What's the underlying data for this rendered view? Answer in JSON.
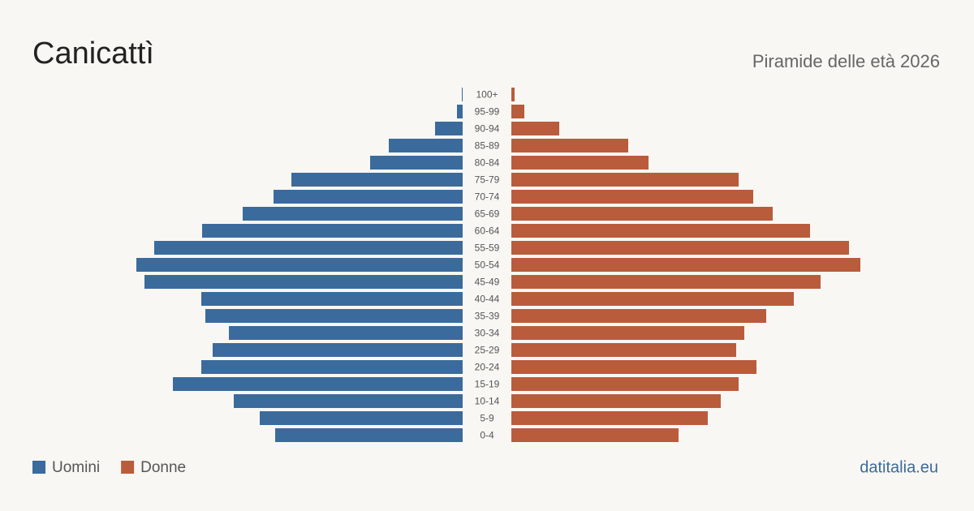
{
  "chart_data": {
    "type": "pyramid",
    "title": "Canicattì",
    "subtitle": "Piramide delle età 2026",
    "source": "datitalia.eu",
    "categories": [
      "100+",
      "95-99",
      "90-94",
      "85-89",
      "80-84",
      "75-79",
      "70-74",
      "65-69",
      "60-64",
      "55-59",
      "50-54",
      "45-49",
      "40-44",
      "35-39",
      "30-34",
      "25-29",
      "20-24",
      "15-19",
      "10-14",
      "5-9",
      "0-4"
    ],
    "series": [
      {
        "name": "Uomini",
        "color": "#3a6b9c",
        "values": [
          3,
          21,
          102,
          273,
          342,
          633,
          699,
          813,
          963,
          1140,
          1206,
          1176,
          966,
          951,
          864,
          924,
          966,
          1071,
          846,
          750,
          693
        ]
      },
      {
        "name": "Donne",
        "color": "#b95c3c",
        "values": [
          12,
          48,
          177,
          432,
          507,
          840,
          894,
          966,
          1104,
          1248,
          1290,
          1143,
          1044,
          942,
          861,
          831,
          906,
          840,
          774,
          726,
          618
        ]
      }
    ]
  }
}
